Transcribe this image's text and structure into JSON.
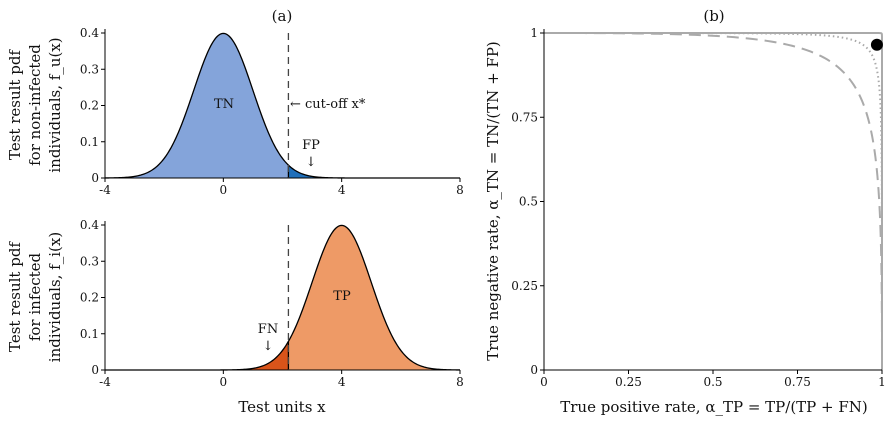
{
  "chart_data": [
    {
      "panel_label": "(a)",
      "type": "area",
      "xlim": [
        -4,
        8
      ],
      "ylim": [
        0,
        0.4
      ],
      "x_ticks": [
        "-4",
        "0",
        "4",
        "8"
      ],
      "y_ticks": [
        "0",
        "0.1",
        "0.2",
        "0.3",
        "0.4"
      ],
      "ylabel_lines": [
        "Test result pdf",
        "for non-infected",
        "individuals, f_u(x)"
      ],
      "distribution": {
        "name": "f_u",
        "mean": 0,
        "sd": 1,
        "peak": 0.4
      },
      "cutoff": 2.2,
      "regions": [
        {
          "label": "TN",
          "from": -4,
          "to": 2.2,
          "color": "#84A4DA"
        },
        {
          "label": "FP",
          "from": 2.2,
          "to": 8,
          "color": "#1F6FBA"
        }
      ],
      "annotations": {
        "cutoff": "← cut-off x*",
        "fp": "FP",
        "fp_arrow": "↓",
        "tn": "TN"
      }
    },
    {
      "type": "area",
      "xlim": [
        -4,
        8
      ],
      "ylim": [
        0,
        0.4
      ],
      "x_ticks": [
        "-4",
        "0",
        "4",
        "8"
      ],
      "y_ticks": [
        "0",
        "0.1",
        "0.2",
        "0.3",
        "0.4"
      ],
      "ylabel_lines": [
        "Test result pdf",
        "for infected",
        "individuals, f_i(x)"
      ],
      "xlabel": "Test units x",
      "distribution": {
        "name": "f_i",
        "mean": 4,
        "sd": 1,
        "peak": 0.4
      },
      "cutoff": 2.2,
      "regions": [
        {
          "label": "FN",
          "from": -4,
          "to": 2.2,
          "color": "#D9541A"
        },
        {
          "label": "TP",
          "from": 2.2,
          "to": 8,
          "color": "#EE9A66"
        }
      ],
      "annotations": {
        "fn": "FN",
        "fn_arrow": "↓",
        "tp": "TP"
      }
    },
    {
      "panel_label": "(b)",
      "type": "line",
      "xlim": [
        0,
        1
      ],
      "ylim": [
        0,
        1
      ],
      "x_ticks": [
        "0",
        "0.25",
        "0.5",
        "0.75",
        "1"
      ],
      "y_ticks": [
        "0",
        "0.25",
        "0.5",
        "0.75",
        "1"
      ],
      "xlabel": "True positive rate, α_TP = TP/(TP + FN)",
      "ylabel": "True negative rate, α_TN = TN/(TN + FP)",
      "series": [
        {
          "style": "solid",
          "color": "#aaaaaa",
          "separation": 6
        },
        {
          "style": "dotted",
          "color": "#aaaaaa",
          "separation": 3.4
        },
        {
          "style": "dashed",
          "color": "#aaaaaa",
          "separation": 2.4
        }
      ],
      "marker": {
        "x": 0.985,
        "y": 0.965,
        "color": "#000000"
      }
    }
  ]
}
